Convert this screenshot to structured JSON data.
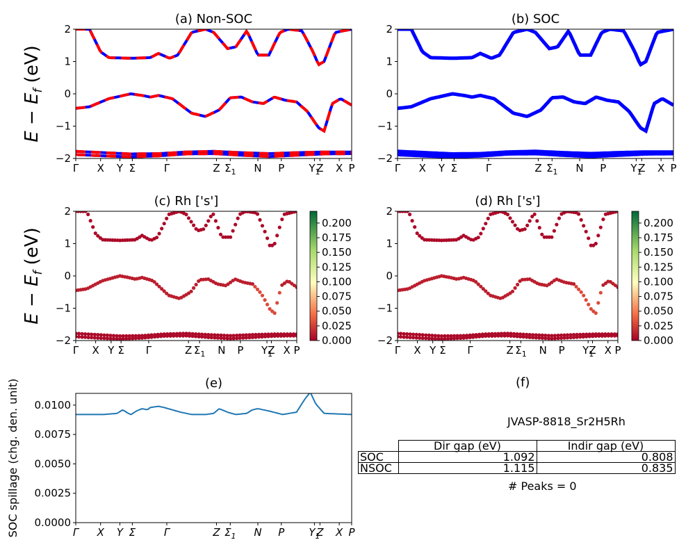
{
  "chart_data": [
    {
      "id": "a",
      "type": "line",
      "title": "(a) Non-SOC",
      "ylabel": "E - E_f (eV)",
      "ylim": [
        -2,
        2
      ],
      "yticks": [
        "−2",
        "−1",
        "0",
        "1",
        "2"
      ],
      "kpath_labels": [
        "Γ",
        "X",
        "Y",
        "Σ",
        "Γ",
        "Z",
        "Σ1",
        "N",
        "P",
        "Y1",
        "Z",
        "X",
        "P"
      ],
      "colors": {
        "band_up": "#0000ff",
        "band_down": "#ff0000"
      },
      "series": [
        {
          "band": "upper",
          "x": [
            0,
            0.05,
            0.09,
            0.12,
            0.2,
            0.27,
            0.3,
            0.34,
            0.37,
            0.42,
            0.47,
            0.5,
            0.55,
            0.58,
            0.62,
            0.66,
            0.7,
            0.74,
            0.77,
            0.82,
            0.86,
            0.88,
            0.9,
            0.94,
            1.0
          ],
          "y": [
            2.0,
            2.0,
            1.3,
            1.12,
            1.1,
            1.12,
            1.25,
            1.1,
            1.2,
            1.9,
            2.0,
            1.9,
            1.4,
            1.45,
            1.95,
            1.2,
            1.2,
            1.9,
            2.0,
            1.95,
            1.3,
            0.9,
            1.0,
            1.9,
            2.0
          ]
        },
        {
          "band": "valence",
          "x": [
            0,
            0.05,
            0.12,
            0.2,
            0.24,
            0.27,
            0.3,
            0.35,
            0.42,
            0.47,
            0.52,
            0.56,
            0.6,
            0.64,
            0.68,
            0.72,
            0.76,
            0.8,
            0.84,
            0.88,
            0.9,
            0.93,
            0.96,
            1.0
          ],
          "y": [
            -0.45,
            -0.4,
            -0.15,
            0.0,
            -0.05,
            -0.1,
            -0.05,
            -0.15,
            -0.6,
            -0.7,
            -0.5,
            -0.12,
            -0.1,
            -0.25,
            -0.3,
            -0.1,
            -0.2,
            -0.25,
            -0.55,
            -1.05,
            -1.15,
            -0.3,
            -0.15,
            -0.35
          ]
        },
        {
          "band": "lower-1",
          "x": [
            0,
            0.1,
            0.2,
            0.3,
            0.4,
            0.5,
            0.6,
            0.7,
            0.8,
            0.9,
            1.0
          ],
          "y": [
            -1.78,
            -1.82,
            -1.86,
            -1.85,
            -1.8,
            -1.78,
            -1.82,
            -1.85,
            -1.82,
            -1.8,
            -1.8
          ]
        },
        {
          "band": "lower-2",
          "x": [
            0,
            0.1,
            0.2,
            0.3,
            0.4,
            0.5,
            0.6,
            0.7,
            0.8,
            0.9,
            1.0
          ],
          "y": [
            -1.88,
            -1.92,
            -1.95,
            -1.92,
            -1.86,
            -1.85,
            -1.9,
            -1.94,
            -1.9,
            -1.86,
            -1.85
          ]
        }
      ]
    },
    {
      "id": "b",
      "type": "line",
      "title": "(b) SOC",
      "ylim": [
        -2,
        2
      ],
      "yticks": [
        "−2",
        "−1",
        "0",
        "1",
        "2"
      ],
      "kpath_labels": [
        "Γ",
        "X",
        "Y",
        "Σ",
        "Γ",
        "Z",
        "Σ1",
        "N",
        "P",
        "Y1",
        "Z",
        "X",
        "P"
      ],
      "colors": {
        "band": "#0000ff"
      }
    },
    {
      "id": "c",
      "type": "scatter",
      "title": "(c)  Rh ['s']",
      "ylabel": "E - E_f (eV)",
      "ylim": [
        -2,
        2
      ],
      "yticks": [
        "−2",
        "−1",
        "0",
        "1",
        "2"
      ],
      "kpath_labels": [
        "Γ",
        "X",
        "Y",
        "Σ",
        "Γ",
        "Z",
        "Σ1",
        "N",
        "P",
        "Y1",
        "Z",
        "X",
        "P"
      ],
      "colorbar": {
        "min": 0.0,
        "max": 0.22,
        "ticks": [
          "0.000",
          "0.025",
          "0.050",
          "0.075",
          "0.100",
          "0.125",
          "0.150",
          "0.175",
          "0.200"
        ],
        "colormap": "RdYlGn"
      }
    },
    {
      "id": "d",
      "type": "scatter",
      "title": "(d) Rh ['s']",
      "ylim": [
        -2,
        2
      ],
      "yticks": [
        "−2",
        "−1",
        "0",
        "1",
        "2"
      ],
      "kpath_labels": [
        "Γ",
        "X",
        "Y",
        "Σ",
        "Γ",
        "Z",
        "Σ1",
        "N",
        "P",
        "Y1",
        "Z",
        "X",
        "P"
      ],
      "colorbar": {
        "min": 0.0,
        "max": 0.22,
        "ticks": [
          "0.000",
          "0.025",
          "0.050",
          "0.075",
          "0.100",
          "0.125",
          "0.150",
          "0.175",
          "0.200"
        ],
        "colormap": "RdYlGn"
      }
    },
    {
      "id": "e",
      "type": "line",
      "title": "(e)",
      "ylabel": "SOC spillage (chg. den. unit)",
      "ylim": [
        0,
        0.011
      ],
      "yticks": [
        "0.0000",
        "0.0025",
        "0.0050",
        "0.0075",
        "0.0100"
      ],
      "kpath_labels": [
        "Γ",
        "X",
        "Y",
        "Σ",
        "Γ",
        "Z",
        "Σ1",
        "N",
        "P",
        "Y1",
        "Z",
        "X",
        "P"
      ],
      "colors": {
        "line": "#1f77b4"
      },
      "series": [
        {
          "x": [
            0,
            0.1,
            0.15,
            0.17,
            0.19,
            0.2,
            0.22,
            0.24,
            0.26,
            0.27,
            0.3,
            0.32,
            0.35,
            0.38,
            0.42,
            0.47,
            0.5,
            0.52,
            0.55,
            0.58,
            0.62,
            0.64,
            0.66,
            0.7,
            0.75,
            0.8,
            0.83,
            0.85,
            0.87,
            0.9,
            1.0
          ],
          "y": [
            0.0092,
            0.0092,
            0.0093,
            0.0096,
            0.0093,
            0.0092,
            0.0095,
            0.0097,
            0.0096,
            0.0098,
            0.0099,
            0.0098,
            0.0096,
            0.0094,
            0.0092,
            0.0092,
            0.0093,
            0.0097,
            0.0094,
            0.0092,
            0.0093,
            0.0096,
            0.0097,
            0.0095,
            0.0092,
            0.0094,
            0.0105,
            0.0111,
            0.0101,
            0.0093,
            0.0092
          ]
        }
      ]
    }
  ],
  "panel_f": {
    "title": "(f)",
    "material": "JVASP-8818_Sr2H5Rh",
    "table": {
      "headers": [
        "Dir gap (eV)",
        "Indir gap (eV)"
      ],
      "rows": [
        {
          "label": "SOC",
          "dir_gap": "1.092",
          "indir_gap": "0.808"
        },
        {
          "label": "NSOC",
          "dir_gap": "1.115",
          "indir_gap": "0.835"
        }
      ]
    },
    "peaks": "# Peaks = 0"
  }
}
